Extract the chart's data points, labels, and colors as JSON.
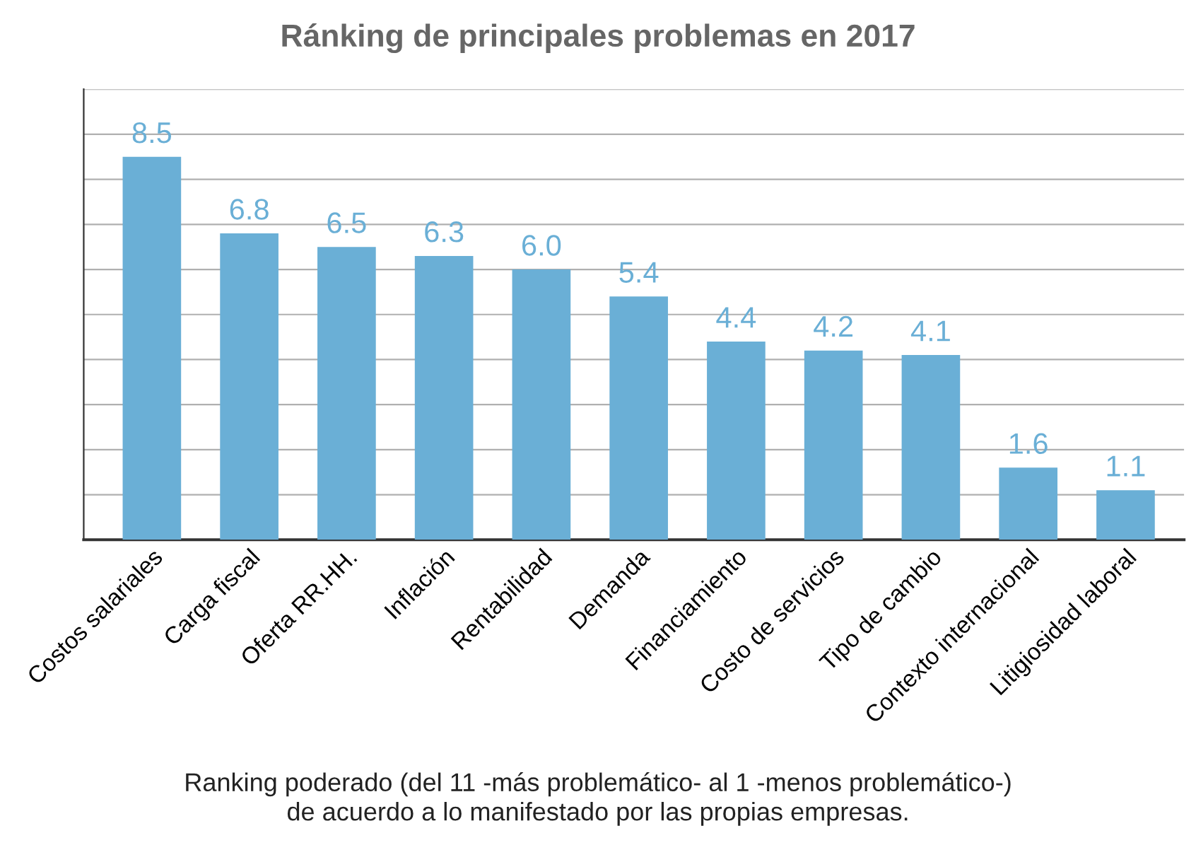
{
  "chart_data": {
    "type": "bar",
    "title": "Ránking de principales problemas en 2017",
    "categories": [
      "Costos salariales",
      "Carga fiscal",
      "Oferta RR.HH.",
      "Inflación",
      "Rentabilidad",
      "Demanda",
      "Financiamiento",
      "Costo de servicios",
      "Tipo de cambio",
      "Contexto internacional",
      "Litigiosidad laboral"
    ],
    "values": [
      8.5,
      6.8,
      6.5,
      6.3,
      6.0,
      5.4,
      4.4,
      4.2,
      4.1,
      1.6,
      1.1
    ],
    "color": "#6aafd6",
    "ylim": [
      0,
      10
    ],
    "yticks": [
      {
        "value": 0,
        "label": null
      },
      {
        "value": 1,
        "label": null
      },
      {
        "value": 2,
        "label": null
      },
      {
        "value": 3,
        "label": null
      },
      {
        "value": 4,
        "label": null
      },
      {
        "value": 5,
        "label": null
      },
      {
        "value": 6,
        "label": null
      },
      {
        "value": 7,
        "label": null
      },
      {
        "value": 8,
        "label": null
      },
      {
        "value": 9,
        "label": null
      },
      {
        "value": 10,
        "label": null
      }
    ],
    "tick_labels": "x",
    "grid": "y",
    "value_labels": [
      "8.5",
      "6.8",
      "6.5",
      "6.3",
      "6.0",
      "5.4",
      "4.4",
      "4.2",
      "4.1",
      "1.6",
      "1.1"
    ],
    "annotations": [
      "Ranking poderado (del 11 -más problemático- al 1 -menos problemático-)\nde acuerdo a lo manifestado por las propias empresas."
    ]
  }
}
